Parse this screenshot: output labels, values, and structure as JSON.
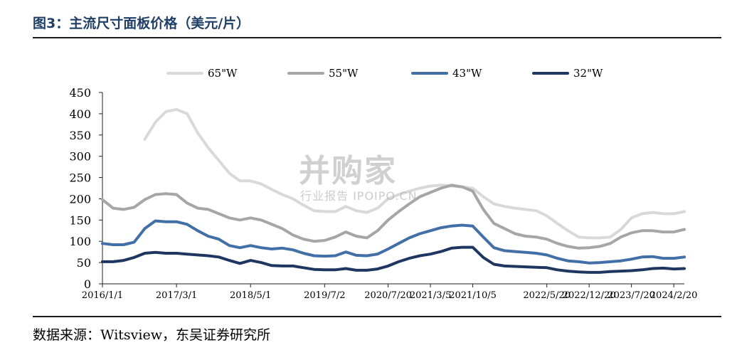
{
  "title": "图3：主流尺寸面板价格（美元/片）",
  "source": "数据来源：Witsview，东吴证券研究所",
  "watermark": {
    "main": "并购家",
    "sub": "行业报告 IPOIPO.CN"
  },
  "chart_data": {
    "type": "line",
    "title": "主流尺寸面板价格（美元/片）",
    "xlabel": "",
    "ylabel": "",
    "ylim": [
      0,
      450
    ],
    "yticks": [
      0,
      50,
      100,
      150,
      200,
      250,
      300,
      350,
      400,
      450
    ],
    "grid": false,
    "legend_position": "top",
    "x_tick_labels": [
      "2016/1/1",
      "2017/3/1",
      "2018/5/1",
      "2019/7/2",
      "2020/7/20",
      "2021/3/5",
      "2021/10/5",
      "2022/5/20",
      "2022/12/20",
      "2023/7/20",
      "2024/2/20"
    ],
    "x": [
      "2016/1/1",
      "2016/3/1",
      "2016/5/1",
      "2016/7/1",
      "2016/9/1",
      "2016/11/1",
      "2017/1/1",
      "2017/3/1",
      "2017/5/1",
      "2017/7/1",
      "2017/9/1",
      "2017/11/1",
      "2018/1/1",
      "2018/3/1",
      "2018/5/1",
      "2018/7/1",
      "2018/9/1",
      "2018/11/1",
      "2019/1/1",
      "2019/3/1",
      "2019/5/1",
      "2019/7/2",
      "2019/9/1",
      "2019/11/1",
      "2020/1/1",
      "2020/3/1",
      "2020/5/1",
      "2020/7/20",
      "2020/9/1",
      "2020/11/1",
      "2021/1/1",
      "2021/3/5",
      "2021/5/1",
      "2021/7/1",
      "2021/9/1",
      "2021/10/5",
      "2021/11/5",
      "2021/12/5",
      "2022/1/5",
      "2022/2/5",
      "2022/3/5",
      "2022/4/5",
      "2022/5/20",
      "2022/7/1",
      "2022/9/1",
      "2022/10/20",
      "2022/12/20",
      "2023/2/20",
      "2023/4/20",
      "2023/6/1",
      "2023/7/20",
      "2023/9/20",
      "2023/11/20",
      "2024/1/20",
      "2024/2/20",
      "2024/4/20"
    ],
    "series": [
      {
        "name": "65\"W",
        "color": "#d9d9d9",
        "values": [
          null,
          null,
          null,
          null,
          340,
          380,
          405,
          410,
          400,
          355,
          320,
          290,
          260,
          242,
          242,
          235,
          222,
          210,
          200,
          185,
          172,
          170,
          170,
          182,
          172,
          168,
          178,
          200,
          210,
          218,
          225,
          230,
          232,
          230,
          228,
          225,
          205,
          188,
          182,
          178,
          175,
          172,
          160,
          142,
          125,
          110,
          108,
          108,
          110,
          128,
          155,
          165,
          168,
          165,
          165,
          170
        ]
      },
      {
        "name": "55\"W",
        "color": "#a6a6a6",
        "values": [
          198,
          178,
          175,
          180,
          198,
          210,
          212,
          210,
          190,
          178,
          175,
          165,
          155,
          150,
          155,
          150,
          140,
          130,
          115,
          105,
          100,
          102,
          110,
          122,
          112,
          108,
          125,
          150,
          170,
          188,
          205,
          215,
          225,
          232,
          228,
          218,
          175,
          142,
          130,
          118,
          112,
          110,
          105,
          95,
          88,
          84,
          85,
          88,
          95,
          110,
          120,
          125,
          125,
          122,
          122,
          128
        ]
      },
      {
        "name": "43\"W",
        "color": "#416fa6",
        "values": [
          95,
          92,
          92,
          98,
          130,
          148,
          146,
          146,
          140,
          125,
          112,
          105,
          90,
          85,
          90,
          85,
          82,
          84,
          80,
          72,
          66,
          65,
          66,
          75,
          67,
          66,
          70,
          82,
          95,
          108,
          118,
          125,
          132,
          136,
          138,
          136,
          110,
          85,
          78,
          76,
          74,
          72,
          68,
          60,
          54,
          52,
          49,
          50,
          52,
          54,
          58,
          63,
          64,
          60,
          60,
          63
        ]
      },
      {
        "name": "32\"W",
        "color": "#1f3760",
        "values": [
          52,
          52,
          55,
          62,
          72,
          74,
          72,
          72,
          70,
          68,
          66,
          63,
          55,
          48,
          55,
          50,
          43,
          42,
          42,
          38,
          34,
          33,
          33,
          36,
          32,
          32,
          35,
          42,
          52,
          60,
          66,
          70,
          76,
          84,
          86,
          86,
          62,
          46,
          42,
          41,
          40,
          39,
          38,
          33,
          30,
          28,
          27,
          27,
          29,
          30,
          31,
          33,
          36,
          37,
          35,
          36
        ]
      }
    ]
  }
}
